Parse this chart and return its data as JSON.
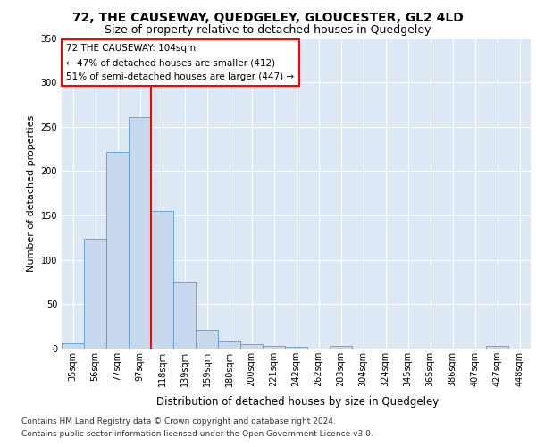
{
  "title": "72, THE CAUSEWAY, QUEDGELEY, GLOUCESTER, GL2 4LD",
  "subtitle": "Size of property relative to detached houses in Quedgeley",
  "xlabel": "Distribution of detached houses by size in Quedgeley",
  "ylabel": "Number of detached properties",
  "categories": [
    "35sqm",
    "56sqm",
    "77sqm",
    "97sqm",
    "118sqm",
    "139sqm",
    "159sqm",
    "180sqm",
    "200sqm",
    "221sqm",
    "242sqm",
    "262sqm",
    "283sqm",
    "304sqm",
    "324sqm",
    "345sqm",
    "365sqm",
    "386sqm",
    "407sqm",
    "427sqm",
    "448sqm"
  ],
  "values": [
    6,
    124,
    222,
    261,
    155,
    76,
    21,
    9,
    5,
    3,
    2,
    0,
    3,
    0,
    0,
    0,
    0,
    0,
    0,
    3,
    0
  ],
  "bar_color": "#c9d9ed",
  "bar_edge_color": "#5b9bd5",
  "vline_x": 3.5,
  "vline_color": "red",
  "vline_linewidth": 1.5,
  "annotation_box_text": "72 THE CAUSEWAY: 104sqm\n← 47% of detached houses are smaller (412)\n51% of semi-detached houses are larger (447) →",
  "box_edge_color": "red",
  "box_face_color": "white",
  "ylim": [
    0,
    350
  ],
  "yticks": [
    0,
    50,
    100,
    150,
    200,
    250,
    300,
    350
  ],
  "background_color": "#dde8f5",
  "grid_color": "white",
  "footer_line1": "Contains HM Land Registry data © Crown copyright and database right 2024.",
  "footer_line2": "Contains public sector information licensed under the Open Government Licence v3.0.",
  "title_fontsize": 10,
  "subtitle_fontsize": 9,
  "xlabel_fontsize": 8.5,
  "ylabel_fontsize": 8,
  "tick_fontsize": 7,
  "footer_fontsize": 6.5,
  "annotation_fontsize": 7.5
}
